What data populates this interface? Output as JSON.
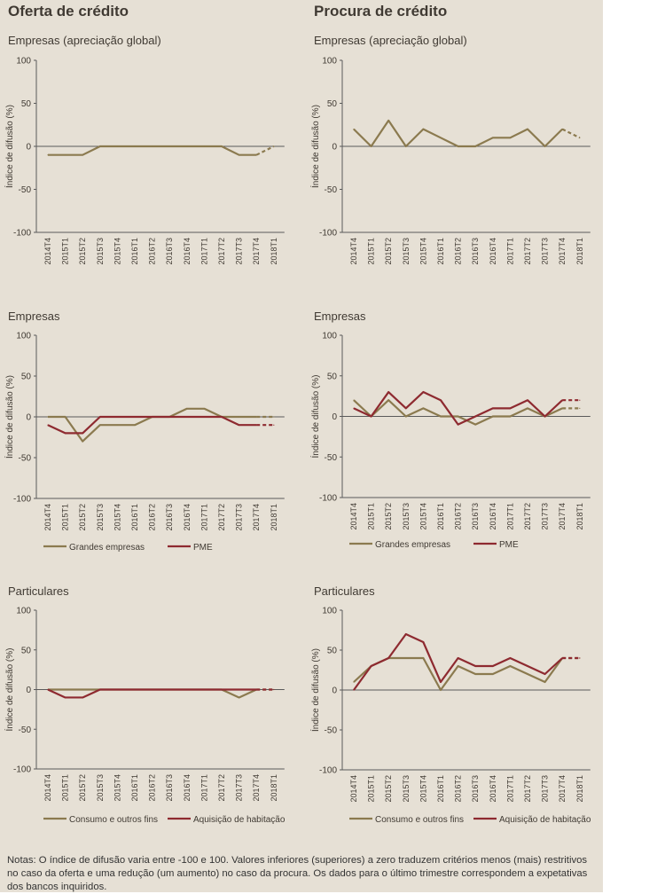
{
  "headers": {
    "supply": "Oferta de crédito",
    "demand": "Procura de crédito"
  },
  "y_axis_label": "Índice de difusão (%)",
  "colors": {
    "background": "#e6e0d5",
    "series_1": "#8b7a4f",
    "series_2": "#8e2a30",
    "axis": "#5a5a5a",
    "text": "#403a33"
  },
  "quarters": [
    "2014T4",
    "2015T1",
    "2015T2",
    "2015T3",
    "2015T4",
    "2016T1",
    "2016T2",
    "2016T3",
    "2016T4",
    "2017T1",
    "2017T2",
    "2017T3",
    "2017T4",
    "2018T1"
  ],
  "notes": "Notas: O índice de difusão varia entre -100 e 100. Valores inferiores (superiores) a zero traduzem critérios menos (mais) restritivos no caso da oferta e uma redução (um aumento) no caso da procura. Os dados para o último trimestre correspondem a expetativas dos bancos inquiridos.",
  "chart_data": [
    {
      "type": "line",
      "title": "Empresas (apreciação global)",
      "ylabel": "Índice de difusão (%)",
      "ylim": [
        -100,
        100
      ],
      "yticks": [
        100,
        50,
        0,
        -50,
        -100
      ],
      "categories": [
        "2014T4",
        "2015T1",
        "2015T2",
        "2015T3",
        "2015T4",
        "2016T1",
        "2016T2",
        "2016T3",
        "2016T4",
        "2017T1",
        "2017T2",
        "2017T3",
        "2017T4",
        "2018T1"
      ],
      "series": [
        {
          "values": [
            -10,
            -10,
            -10,
            0,
            0,
            0,
            0,
            0,
            0,
            0,
            0,
            -10,
            -10,
            0
          ],
          "color": "#8b7a4f",
          "dashed_from_index": 12
        }
      ]
    },
    {
      "type": "line",
      "title": "Empresas (apreciação global)",
      "ylabel": "Índice de difusão (%)",
      "ylim": [
        -100,
        100
      ],
      "yticks": [
        100,
        50,
        0,
        -50,
        -100
      ],
      "categories": [
        "2014T4",
        "2015T1",
        "2015T2",
        "2015T3",
        "2015T4",
        "2016T1",
        "2016T2",
        "2016T3",
        "2016T4",
        "2017T1",
        "2017T2",
        "2017T3",
        "2017T4",
        "2018T1"
      ],
      "series": [
        {
          "values": [
            20,
            0,
            30,
            0,
            20,
            10,
            0,
            0,
            10,
            10,
            20,
            0,
            20,
            10
          ],
          "color": "#8b7a4f",
          "dashed_from_index": 12
        }
      ]
    },
    {
      "type": "line",
      "title": "Empresas",
      "ylabel": "Índice de difusão (%)",
      "ylim": [
        -100,
        100
      ],
      "yticks": [
        100,
        50,
        0,
        -50,
        -100
      ],
      "categories": [
        "2014T4",
        "2015T1",
        "2015T2",
        "2015T3",
        "2015T4",
        "2016T1",
        "2016T2",
        "2016T3",
        "2016T4",
        "2017T1",
        "2017T2",
        "2017T3",
        "2017T4",
        "2018T1"
      ],
      "series": [
        {
          "name": "Grandes empresas",
          "values": [
            0,
            0,
            -30,
            -10,
            -10,
            -10,
            0,
            0,
            10,
            10,
            0,
            0,
            0,
            0
          ],
          "color": "#8b7a4f",
          "dashed_from_index": 12
        },
        {
          "name": "PME",
          "values": [
            -10,
            -20,
            -20,
            0,
            0,
            0,
            0,
            0,
            0,
            0,
            0,
            -10,
            -10,
            -10
          ],
          "color": "#8e2a30",
          "dashed_from_index": 12
        }
      ]
    },
    {
      "type": "line",
      "title": "Empresas",
      "ylabel": "Índice de difusão (%)",
      "ylim": [
        -100,
        100
      ],
      "yticks": [
        100,
        50,
        0,
        -50,
        -100
      ],
      "categories": [
        "2014T4",
        "2015T1",
        "2015T2",
        "2015T3",
        "2015T4",
        "2016T1",
        "2016T2",
        "2016T3",
        "2016T4",
        "2017T1",
        "2017T2",
        "2017T3",
        "2017T4",
        "2018T1"
      ],
      "series": [
        {
          "name": "Grandes empresas",
          "values": [
            20,
            0,
            20,
            0,
            10,
            0,
            0,
            -10,
            0,
            0,
            10,
            0,
            10,
            10
          ],
          "color": "#8b7a4f",
          "dashed_from_index": 12
        },
        {
          "name": "PME",
          "values": [
            10,
            0,
            30,
            10,
            30,
            20,
            -10,
            0,
            10,
            10,
            20,
            0,
            20,
            20
          ],
          "color": "#8e2a30",
          "dashed_from_index": 12
        }
      ]
    },
    {
      "type": "line",
      "title": "Particulares",
      "ylabel": "Índice de difusão (%)",
      "ylim": [
        -100,
        100
      ],
      "yticks": [
        100,
        50,
        0,
        -50,
        -100
      ],
      "categories": [
        "2014T4",
        "2015T1",
        "2015T2",
        "2015T3",
        "2015T4",
        "2016T1",
        "2016T2",
        "2016T3",
        "2016T4",
        "2017T1",
        "2017T2",
        "2017T3",
        "2017T4",
        "2018T1"
      ],
      "series": [
        {
          "name": "Consumo e outros fins",
          "values": [
            0,
            0,
            0,
            0,
            0,
            0,
            0,
            0,
            0,
            0,
            0,
            -10,
            0,
            0
          ],
          "color": "#8b7a4f",
          "dashed_from_index": 12
        },
        {
          "name": "Aquisição de habitação",
          "values": [
            0,
            -10,
            -10,
            0,
            0,
            0,
            0,
            0,
            0,
            0,
            0,
            0,
            0,
            0
          ],
          "color": "#8e2a30",
          "dashed_from_index": 12
        }
      ]
    },
    {
      "type": "line",
      "title": "Particulares",
      "ylabel": "Índice de difusão (%)",
      "ylim": [
        -100,
        100
      ],
      "yticks": [
        100,
        50,
        0,
        -50,
        -100
      ],
      "categories": [
        "2014T4",
        "2015T1",
        "2015T2",
        "2015T3",
        "2015T4",
        "2016T1",
        "2016T2",
        "2016T3",
        "2016T4",
        "2017T1",
        "2017T2",
        "2017T3",
        "2017T4",
        "2018T1"
      ],
      "series": [
        {
          "name": "Consumo e outros fins",
          "values": [
            10,
            30,
            40,
            40,
            40,
            0,
            30,
            20,
            20,
            30,
            20,
            10,
            40,
            40
          ],
          "color": "#8b7a4f",
          "dashed_from_index": 12
        },
        {
          "name": "Aquisição de habitação",
          "values": [
            0,
            30,
            40,
            70,
            60,
            10,
            40,
            30,
            30,
            40,
            30,
            20,
            40,
            40
          ],
          "color": "#8e2a30",
          "dashed_from_index": 12
        }
      ]
    }
  ]
}
